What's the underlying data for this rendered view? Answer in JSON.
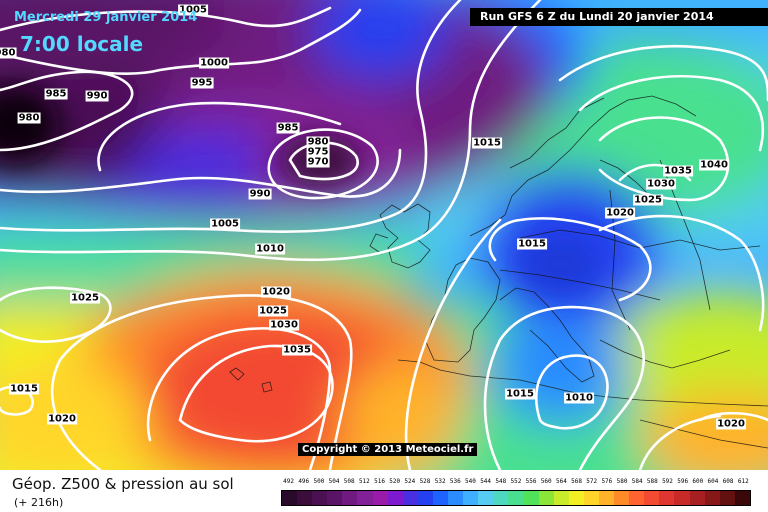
{
  "header": {
    "date": "Mercredi 29 janvier 2014",
    "time": "7:00 locale",
    "run": "Run GFS 6 Z du Lundi 20 janvier 2014"
  },
  "copyright": "Copyright © 2013 Meteociel.fr",
  "footer": {
    "product": "Géop. Z500 & pression au sol",
    "lead": "(+ 216h)"
  },
  "legend": {
    "values": [
      "492",
      "496",
      "500",
      "504",
      "508",
      "512",
      "516",
      "520",
      "524",
      "528",
      "532",
      "536",
      "540",
      "544",
      "548",
      "552",
      "556",
      "560",
      "564",
      "568",
      "572",
      "576",
      "580",
      "584",
      "588",
      "592",
      "596",
      "600",
      "604",
      "608",
      "612"
    ],
    "colors": [
      "#2a0a2a",
      "#3a0d3a",
      "#4a1052",
      "#5a1466",
      "#6e1a80",
      "#822098",
      "#9a1aaa",
      "#7d1ad0",
      "#4a2fe0",
      "#2540f0",
      "#1f63ff",
      "#2a8cff",
      "#3fb0ff",
      "#55ccf0",
      "#4ed8c0",
      "#48e090",
      "#50e35a",
      "#8ce63a",
      "#c8ec2a",
      "#f3ef25",
      "#ffd52a",
      "#ffb22a",
      "#ff8a2a",
      "#ff6330",
      "#f34a32",
      "#e03632",
      "#c82a2a",
      "#a81f22",
      "#861818",
      "#621010",
      "#3a0808"
    ]
  },
  "isobars": [
    {
      "value": "1005",
      "label_pos": "top-left"
    },
    {
      "value": "980",
      "label_pos": "far-left"
    },
    {
      "value": "985",
      "label_pos": "left"
    },
    {
      "value": "990",
      "label_pos": "left"
    },
    {
      "value": "980",
      "label_pos": "left-low"
    },
    {
      "value": "1000",
      "label_pos": "top"
    },
    {
      "value": "995",
      "label_pos": "top"
    },
    {
      "value": "985",
      "label_pos": "center"
    },
    {
      "value": "980",
      "label_pos": "center-low"
    },
    {
      "value": "975",
      "label_pos": "center-low"
    },
    {
      "value": "970",
      "label_pos": "center-low"
    },
    {
      "value": "990",
      "label_pos": "center"
    },
    {
      "value": "1005",
      "label_pos": "center"
    },
    {
      "value": "1010",
      "label_pos": "center"
    },
    {
      "value": "1015",
      "label_pos": "north-sea"
    },
    {
      "value": "1035",
      "label_pos": "scandinavia"
    },
    {
      "value": "1040",
      "label_pos": "scandinavia"
    },
    {
      "value": "1030",
      "label_pos": "scandinavia"
    },
    {
      "value": "1025",
      "label_pos": "scandinavia"
    },
    {
      "value": "1020",
      "label_pos": "baltic"
    },
    {
      "value": "1015",
      "label_pos": "france"
    },
    {
      "value": "1025",
      "label_pos": "atlantic"
    },
    {
      "value": "1020",
      "label_pos": "atlantic-high"
    },
    {
      "value": "1025",
      "label_pos": "atlantic-high"
    },
    {
      "value": "1030",
      "label_pos": "atlantic-high"
    },
    {
      "value": "1035",
      "label_pos": "atlantic-high"
    },
    {
      "value": "1015",
      "label_pos": "sw"
    },
    {
      "value": "1020",
      "label_pos": "sw"
    },
    {
      "value": "1015",
      "label_pos": "mediterranean"
    },
    {
      "value": "1010",
      "label_pos": "mediterranean"
    },
    {
      "value": "1020",
      "label_pos": "se"
    }
  ]
}
